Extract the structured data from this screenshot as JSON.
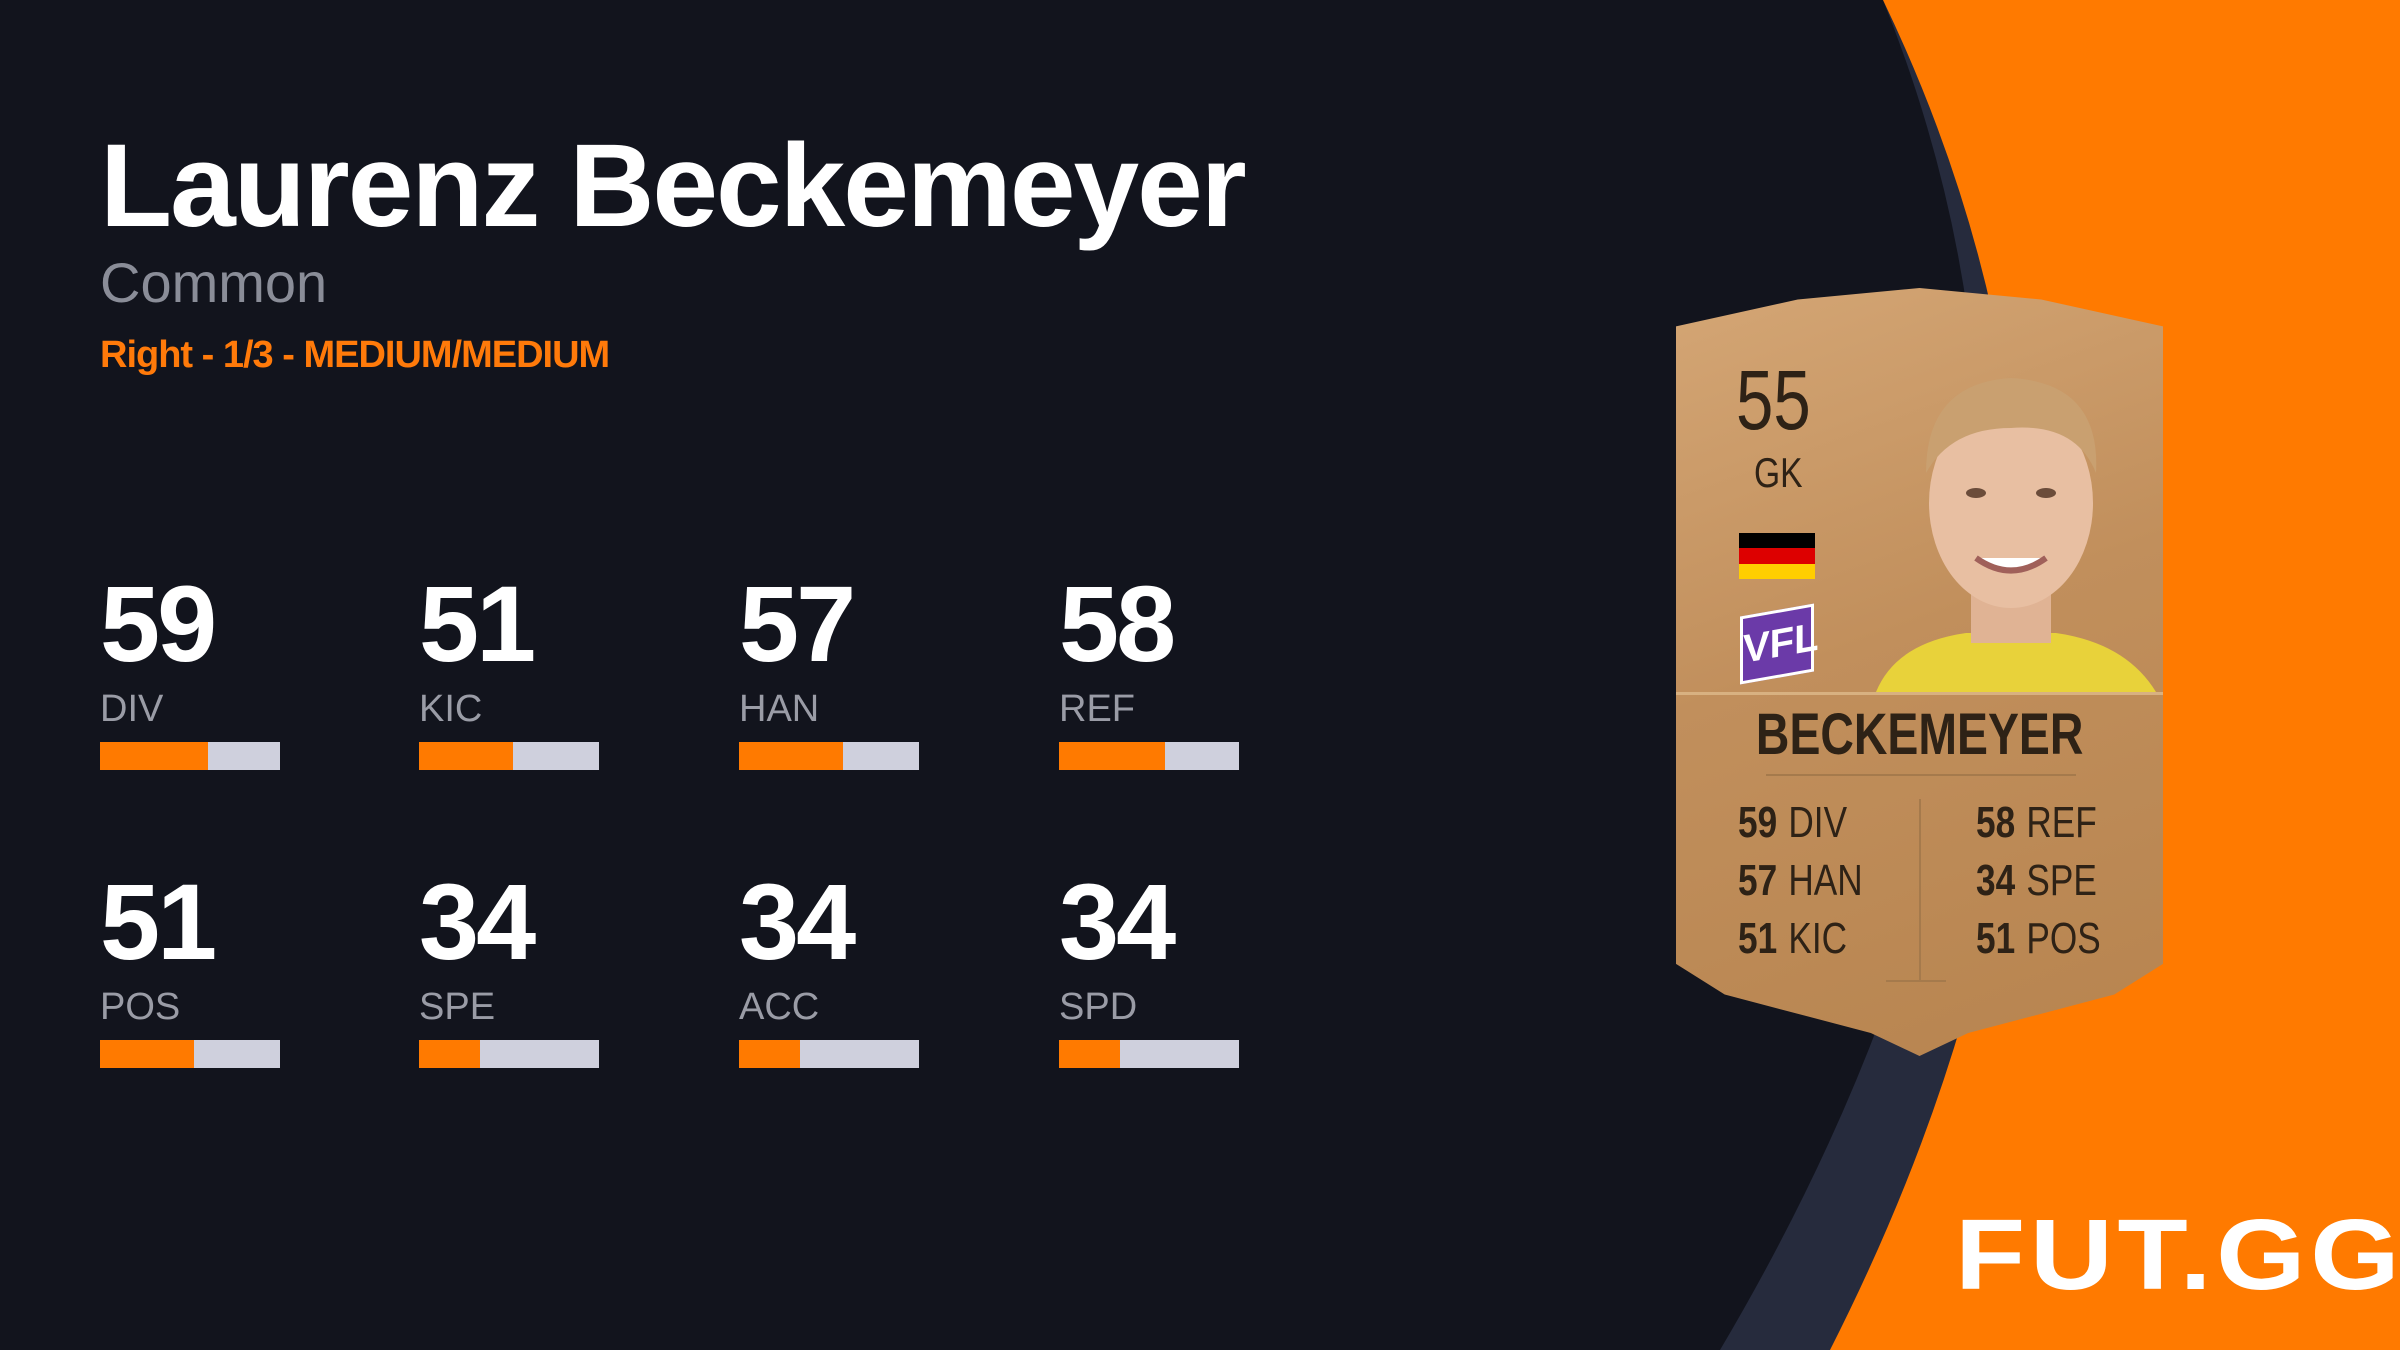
{
  "player": {
    "name": "Laurenz Beckemeyer",
    "rarity": "Common",
    "info": "Right - 1/3 - MEDIUM/MEDIUM"
  },
  "stats": [
    {
      "value": "59",
      "label": "DIV",
      "fill_fraction": 0.6
    },
    {
      "value": "51",
      "label": "KIC",
      "fill_fraction": 0.52
    },
    {
      "value": "57",
      "label": "HAN",
      "fill_fraction": 0.58
    },
    {
      "value": "58",
      "label": "REF",
      "fill_fraction": 0.59
    },
    {
      "value": "51",
      "label": "POS",
      "fill_fraction": 0.52
    },
    {
      "value": "34",
      "label": "SPE",
      "fill_fraction": 0.34
    },
    {
      "value": "34",
      "label": "ACC",
      "fill_fraction": 0.34
    },
    {
      "value": "34",
      "label": "SPD",
      "fill_fraction": 0.34
    }
  ],
  "card": {
    "rating": "55",
    "position": "GK",
    "name": "BECKEMEYER",
    "club_badge": "VFL",
    "nation": "germany-flag",
    "left_stats": [
      {
        "v": "59",
        "l": "DIV"
      },
      {
        "v": "57",
        "l": "HAN"
      },
      {
        "v": "51",
        "l": "KIC"
      }
    ],
    "right_stats": [
      {
        "v": "58",
        "l": "REF"
      },
      {
        "v": "34",
        "l": "SPE"
      },
      {
        "v": "51",
        "l": "POS"
      }
    ]
  },
  "brand": {
    "logo": "FUT.GG"
  },
  "colors": {
    "background": "#12141d",
    "accent": "#ff7a00",
    "band": "#262b3d",
    "bar_empty": "#cfd0dd"
  }
}
